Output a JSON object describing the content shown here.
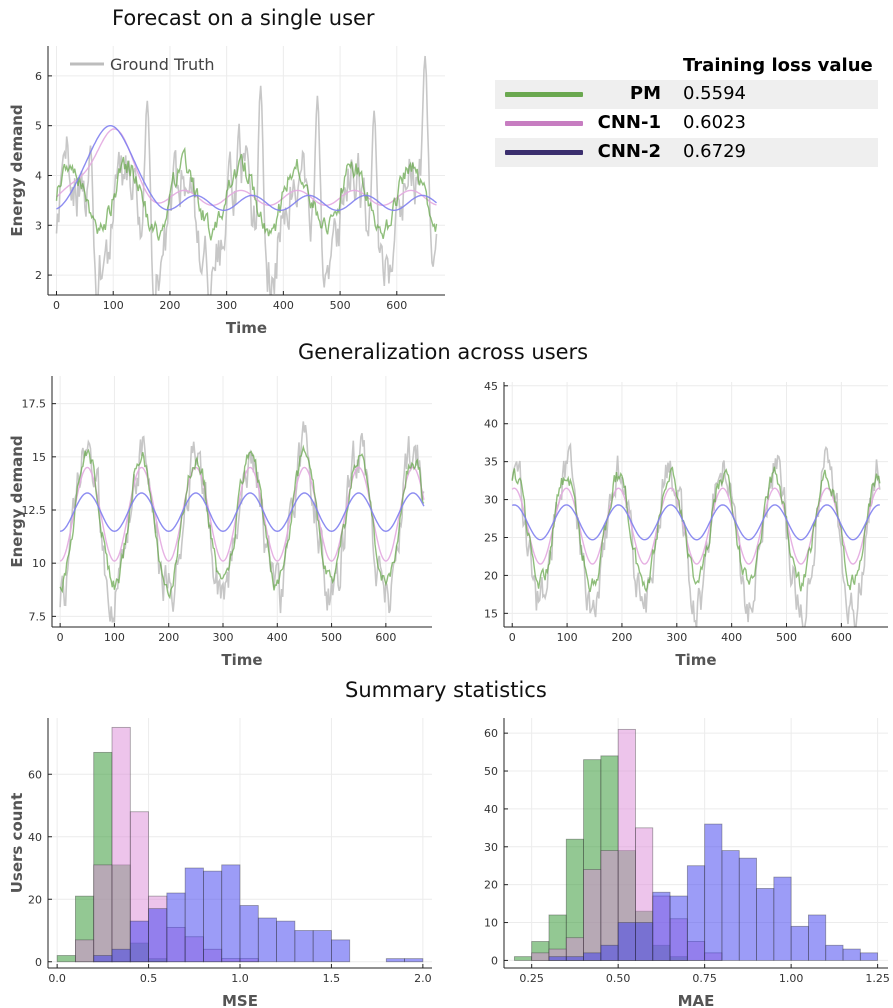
{
  "titles": {
    "single": "Forecast on a single user",
    "generalization": "Generalization across users",
    "summary": "Summary statistics"
  },
  "legend": {
    "ground_truth": "Ground Truth"
  },
  "loss_table": {
    "header": "Training loss value",
    "rows": [
      {
        "model": "PM",
        "value": "0.5594",
        "color": "#6aa84f"
      },
      {
        "model": "CNN-1",
        "value": "0.6023",
        "color": "#c77dc1"
      },
      {
        "model": "CNN-2",
        "value": "0.6729",
        "color": "#3b2f6e"
      }
    ]
  },
  "colors": {
    "ground_truth": "#bdbdbd",
    "pm": "#6aa84f",
    "cnn1": "#e3a8e0",
    "cnn2": "#7f7fef"
  },
  "chart_data": [
    {
      "id": "single",
      "type": "line",
      "xlabel": "Time",
      "ylabel": "Energy demand",
      "xlim": [
        -15,
        685
      ],
      "ylim": [
        1.6,
        6.6
      ],
      "xticks": [
        0,
        100,
        200,
        300,
        400,
        500,
        600
      ],
      "yticks": [
        2,
        3,
        4,
        5,
        6
      ],
      "grid": true,
      "legend": "top-left",
      "series": [
        {
          "name": "Ground Truth",
          "role": "gt",
          "base": 3.1,
          "amp": 1.1,
          "period": 100,
          "phase": 0,
          "noise": 0.55,
          "spikes": [
            [
              60,
              4.6
            ],
            [
              160,
              5.5
            ],
            [
              360,
              5.8
            ],
            [
              460,
              5.6
            ],
            [
              560,
              5.3
            ],
            [
              650,
              6.4
            ]
          ]
        },
        {
          "role": "pm",
          "base": 3.55,
          "amp": 0.65,
          "period": 100,
          "phase": 0,
          "noise": 0.18
        },
        {
          "role": "cnn1",
          "base": 3.55,
          "amp": 0.15,
          "period": 100,
          "phase": 0,
          "noise": 0.0,
          "early_bump": 1.4
        },
        {
          "role": "cnn2",
          "base": 3.45,
          "amp": 0.15,
          "period": 100,
          "phase": 20,
          "noise": 0.0,
          "early_bump": 1.7
        }
      ]
    },
    {
      "id": "gen-left",
      "type": "line",
      "xlabel": "Time",
      "ylabel": "Energy demand",
      "xlim": [
        -15,
        685
      ],
      "ylim": [
        7.0,
        18.8
      ],
      "xticks": [
        0,
        100,
        200,
        300,
        400,
        500,
        600
      ],
      "yticks": [
        7.5,
        10.0,
        12.5,
        15.0,
        17.5
      ],
      "grid": true,
      "series": [
        {
          "role": "gt",
          "base": 11.8,
          "amp": 3.4,
          "period": 100,
          "phase": 25,
          "noise": 1.0
        },
        {
          "role": "cnn1",
          "base": 12.3,
          "amp": 2.2,
          "period": 100,
          "phase": 25,
          "noise": 0.0
        },
        {
          "role": "pm",
          "base": 12.0,
          "amp": 3.0,
          "period": 100,
          "phase": 25,
          "noise": 0.35
        },
        {
          "role": "cnn2",
          "base": 12.4,
          "amp": 0.9,
          "period": 100,
          "phase": 25,
          "noise": 0.0
        }
      ]
    },
    {
      "id": "gen-right",
      "type": "line",
      "xlabel": "Time",
      "ylabel": "",
      "xlim": [
        -15,
        685
      ],
      "ylim": [
        13.2,
        45.5
      ],
      "xticks": [
        0,
        100,
        200,
        300,
        400,
        500,
        600
      ],
      "yticks": [
        15,
        20,
        25,
        30,
        35,
        40,
        45
      ],
      "grid": true,
      "series": [
        {
          "role": "gt",
          "base": 25.0,
          "amp": 9.0,
          "period": 95,
          "phase": 75,
          "noise": 2.4
        },
        {
          "role": "cnn1",
          "base": 26.5,
          "amp": 5.0,
          "period": 95,
          "phase": 75,
          "noise": 0.0
        },
        {
          "role": "pm",
          "base": 26.0,
          "amp": 7.0,
          "period": 95,
          "phase": 75,
          "noise": 1.0
        },
        {
          "role": "cnn2",
          "base": 27.0,
          "amp": 2.3,
          "period": 95,
          "phase": 75,
          "noise": 0.0
        }
      ]
    },
    {
      "id": "hist-mse",
      "type": "histogram",
      "xlabel": "MSE",
      "ylabel": "Users count",
      "xlim": [
        -0.05,
        2.05
      ],
      "ylim": [
        -2,
        78
      ],
      "xticks": [
        "0.0",
        "0.5",
        "1.0",
        "1.5",
        "2.0"
      ],
      "yticks": [
        0,
        20,
        40,
        60
      ],
      "grid": true,
      "bin_start": 0.0,
      "bin_width": 0.1,
      "series": [
        {
          "role": "pm",
          "counts": [
            2,
            21,
            67,
            31,
            6,
            1,
            0,
            0,
            0,
            0,
            0,
            0,
            0,
            0,
            0,
            0,
            0,
            0,
            0,
            0
          ]
        },
        {
          "role": "cnn1",
          "counts": [
            0,
            7,
            31,
            75,
            48,
            21,
            11,
            8,
            4,
            1,
            1,
            0,
            0,
            0,
            0,
            0,
            0,
            0,
            0,
            0
          ]
        },
        {
          "role": "cnn2",
          "counts": [
            0,
            0,
            2,
            4,
            13,
            17,
            22,
            30,
            29,
            31,
            18,
            14,
            13,
            10,
            10,
            7,
            0,
            0,
            1,
            1
          ]
        }
      ]
    },
    {
      "id": "hist-mae",
      "type": "histogram",
      "xlabel": "MAE",
      "ylabel": "",
      "xlim": [
        0.17,
        1.28
      ],
      "ylim": [
        -2,
        64
      ],
      "xticks": [
        "0.25",
        "0.50",
        "0.75",
        "1.00",
        "1.25"
      ],
      "yticks": [
        0,
        10,
        20,
        30,
        40,
        50,
        60
      ],
      "grid": true,
      "bin_start": 0.2,
      "bin_width": 0.05,
      "series": [
        {
          "role": "pm",
          "counts": [
            1,
            5,
            12,
            32,
            53,
            54,
            29,
            13,
            4,
            1,
            0,
            0,
            0,
            0,
            0,
            0,
            0,
            0,
            0,
            0,
            0
          ]
        },
        {
          "role": "cnn1",
          "counts": [
            0,
            2,
            3,
            6,
            24,
            29,
            61,
            35,
            17,
            11,
            5,
            2,
            0,
            0,
            0,
            0,
            0,
            0,
            0,
            0,
            0
          ]
        },
        {
          "role": "cnn2",
          "counts": [
            0,
            0,
            1,
            1,
            2,
            4,
            10,
            10,
            18,
            17,
            25,
            36,
            29,
            27,
            19,
            22,
            9,
            12,
            4,
            3,
            2
          ]
        }
      ]
    }
  ]
}
